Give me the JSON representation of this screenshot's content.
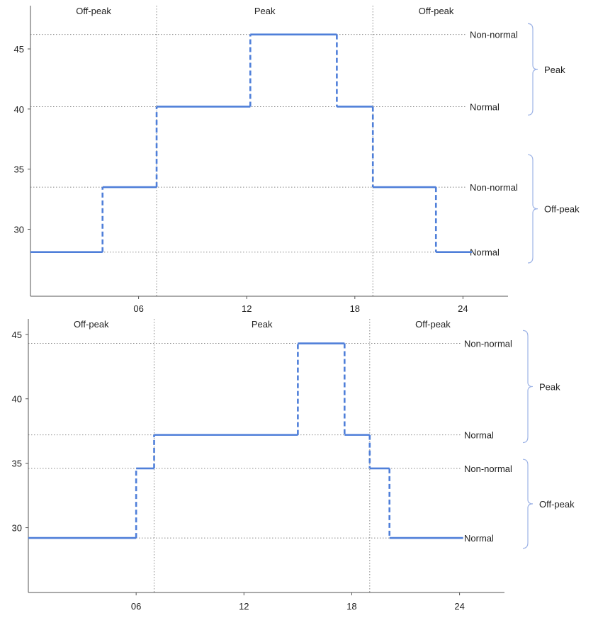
{
  "chart_data": [
    {
      "type": "line",
      "step": true,
      "x_ticks": [
        "06",
        "12",
        "18",
        "24"
      ],
      "y_ticks": [
        30,
        35,
        40,
        45
      ],
      "xlim": [
        0,
        26.5
      ],
      "ylim": [
        24.9,
        47.3
      ],
      "periods": [
        {
          "label": "Off-peak",
          "start": 0,
          "end": 7
        },
        {
          "label": "Peak",
          "start": 7,
          "end": 19
        },
        {
          "label": "Off-peak",
          "start": 19,
          "end": 26.5
        }
      ],
      "levels": [
        {
          "label": "Non-normal",
          "value": 46.2
        },
        {
          "label": "Normal",
          "value": 40.2
        },
        {
          "label": "Non-normal",
          "value": 33.5
        },
        {
          "label": "Normal",
          "value": 28.1
        }
      ],
      "groups": [
        {
          "label": "Peak",
          "from": 47.1,
          "to": 39.5
        },
        {
          "label": "Off-peak",
          "from": 36.2,
          "to": 27.2
        }
      ],
      "series": [
        {
          "x": [
            0,
            4,
            7,
            12.2,
            17,
            19,
            22.5,
            24.5
          ],
          "values": [
            28.1,
            33.5,
            40.2,
            46.2,
            40.2,
            33.5,
            28.1,
            28.1
          ]
        }
      ]
    },
    {
      "type": "line",
      "step": true,
      "x_ticks": [
        "06",
        "12",
        "18",
        "24"
      ],
      "y_ticks": [
        30,
        35,
        40,
        45
      ],
      "xlim": [
        0,
        26.5
      ],
      "ylim": [
        25.3,
        46.2
      ],
      "periods": [
        {
          "label": "Off-peak",
          "start": 0,
          "end": 7
        },
        {
          "label": "Peak",
          "start": 7,
          "end": 19
        },
        {
          "label": "Off-peak",
          "start": 19,
          "end": 26.5
        }
      ],
      "levels": [
        {
          "label": "Non-normal",
          "value": 44.3
        },
        {
          "label": "Normal",
          "value": 37.2
        },
        {
          "label": "Non-normal",
          "value": 34.6
        },
        {
          "label": "Normal",
          "value": 29.2
        }
      ],
      "groups": [
        {
          "label": "Peak",
          "from": 45.3,
          "to": 36.6
        },
        {
          "label": "Off-peak",
          "from": 35.3,
          "to": 28.4
        }
      ],
      "series": [
        {
          "x": [
            0,
            6,
            7,
            15,
            17.6,
            19,
            20.1,
            24.2
          ],
          "values": [
            29.2,
            34.6,
            37.2,
            44.3,
            37.2,
            34.6,
            29.2,
            29.2
          ]
        }
      ]
    }
  ]
}
